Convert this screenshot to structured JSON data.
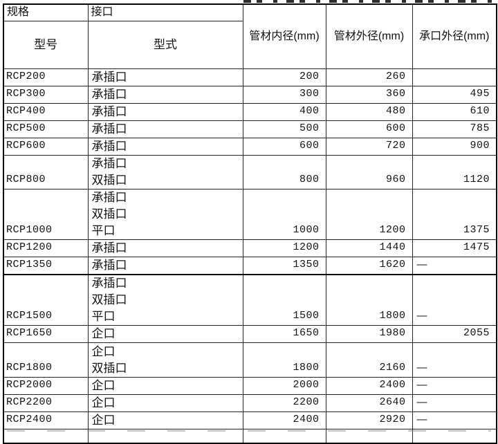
{
  "table": {
    "header": {
      "spec_label": "规格",
      "model_label": "型号",
      "joint_label": "接口",
      "type_label": "型式",
      "col_inner_diameter": "管材内径(mm)",
      "col_outer_diameter": "管材外径(mm)",
      "col_socket_diameter": "承口外径(mm)"
    },
    "rows": [
      {
        "model": "RCP200",
        "types": [
          "承插口"
        ],
        "inner": "200",
        "outer": "260",
        "socket": ""
      },
      {
        "model": "RCP300",
        "types": [
          "承插口"
        ],
        "inner": "300",
        "outer": "360",
        "socket": "495"
      },
      {
        "model": "RCP400",
        "types": [
          "承插口"
        ],
        "inner": "400",
        "outer": "480",
        "socket": "610"
      },
      {
        "model": "RCP500",
        "types": [
          "承插口"
        ],
        "inner": "500",
        "outer": "600",
        "socket": "785"
      },
      {
        "model": "RCP600",
        "types": [
          "承插口"
        ],
        "inner": "600",
        "outer": "720",
        "socket": "900"
      },
      {
        "model": "RCP800",
        "types": [
          "承插口",
          "双插口"
        ],
        "inner": "800",
        "outer": "960",
        "socket": "1120"
      },
      {
        "model": "RCP1000",
        "types": [
          "承插口",
          "双插口",
          "平口"
        ],
        "inner": "1000",
        "outer": "1200",
        "socket": "1375"
      },
      {
        "model": "RCP1200",
        "types": [
          "承插口"
        ],
        "inner": "1200",
        "outer": "1440",
        "socket": "1475"
      },
      {
        "model": "RCP1350",
        "types": [
          "承插口"
        ],
        "inner": "1350",
        "outer": "1620",
        "socket": "—"
      },
      {
        "model": "RCP1500",
        "types": [
          "承插口",
          "双插口",
          "平口"
        ],
        "inner": "1500",
        "outer": "1800",
        "socket": "—"
      },
      {
        "model": "RCP1650",
        "types": [
          "企口"
        ],
        "inner": "1650",
        "outer": "1980",
        "socket": "2055"
      },
      {
        "model": "RCP1800",
        "types": [
          "企口",
          "双插口"
        ],
        "inner": "1800",
        "outer": "2160",
        "socket": "—"
      },
      {
        "model": "RCP2000",
        "types": [
          "企口"
        ],
        "inner": "2000",
        "outer": "2400",
        "socket": "—"
      },
      {
        "model": "RCP2200",
        "types": [
          "企口"
        ],
        "inner": "2200",
        "outer": "2640",
        "socket": "—"
      },
      {
        "model": "RCP2400",
        "types": [
          "企口"
        ],
        "inner": "2400",
        "outer": "2920",
        "socket": "—"
      }
    ],
    "dash_symbol": "—"
  }
}
